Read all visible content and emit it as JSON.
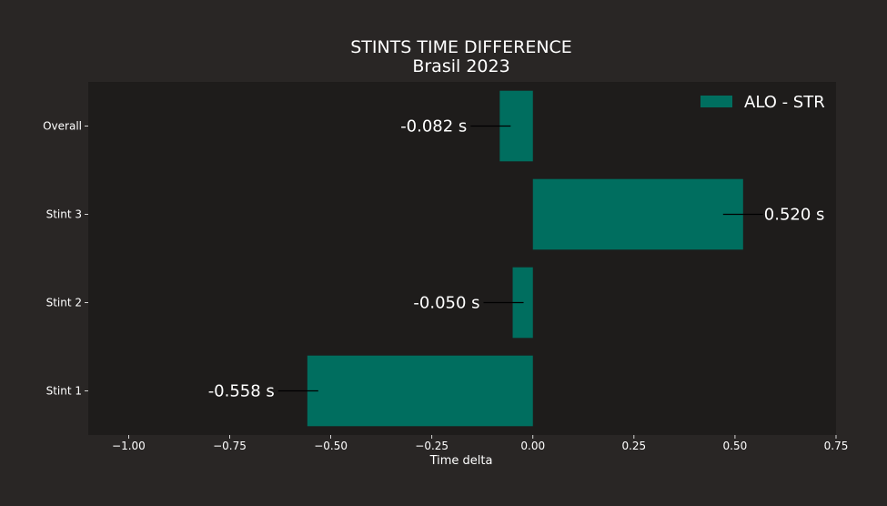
{
  "chart_data": {
    "type": "bar",
    "orientation": "horizontal",
    "title": "STINTS TIME DIFFERENCE",
    "subtitle": "Brasil 2023",
    "xlabel": "Time delta",
    "ylabel": "",
    "xlim": [
      -1.1,
      0.75
    ],
    "x_ticks": [
      -1.0,
      -0.75,
      -0.5,
      -0.25,
      0.0,
      0.25,
      0.5,
      0.75
    ],
    "x_tick_labels": [
      "−1.00",
      "−0.75",
      "−0.50",
      "−0.25",
      "0.00",
      "0.25",
      "0.50",
      "0.75"
    ],
    "categories": [
      "Stint 1",
      "Stint 2",
      "Stint 3",
      "Overall"
    ],
    "series": [
      {
        "name": "ALO - STR",
        "values": [
          -0.558,
          -0.05,
          0.52,
          -0.082
        ],
        "labels": [
          "-0.558 s",
          "-0.050 s",
          "0.520 s",
          "-0.082 s"
        ]
      }
    ],
    "grid": false,
    "legend_position": "top-right",
    "colors": {
      "figure_background": "#292625",
      "plot_background": "#1e1c1b",
      "bar": "#006e5f",
      "text": "#ffffff",
      "annotation_line": "#000000"
    }
  }
}
